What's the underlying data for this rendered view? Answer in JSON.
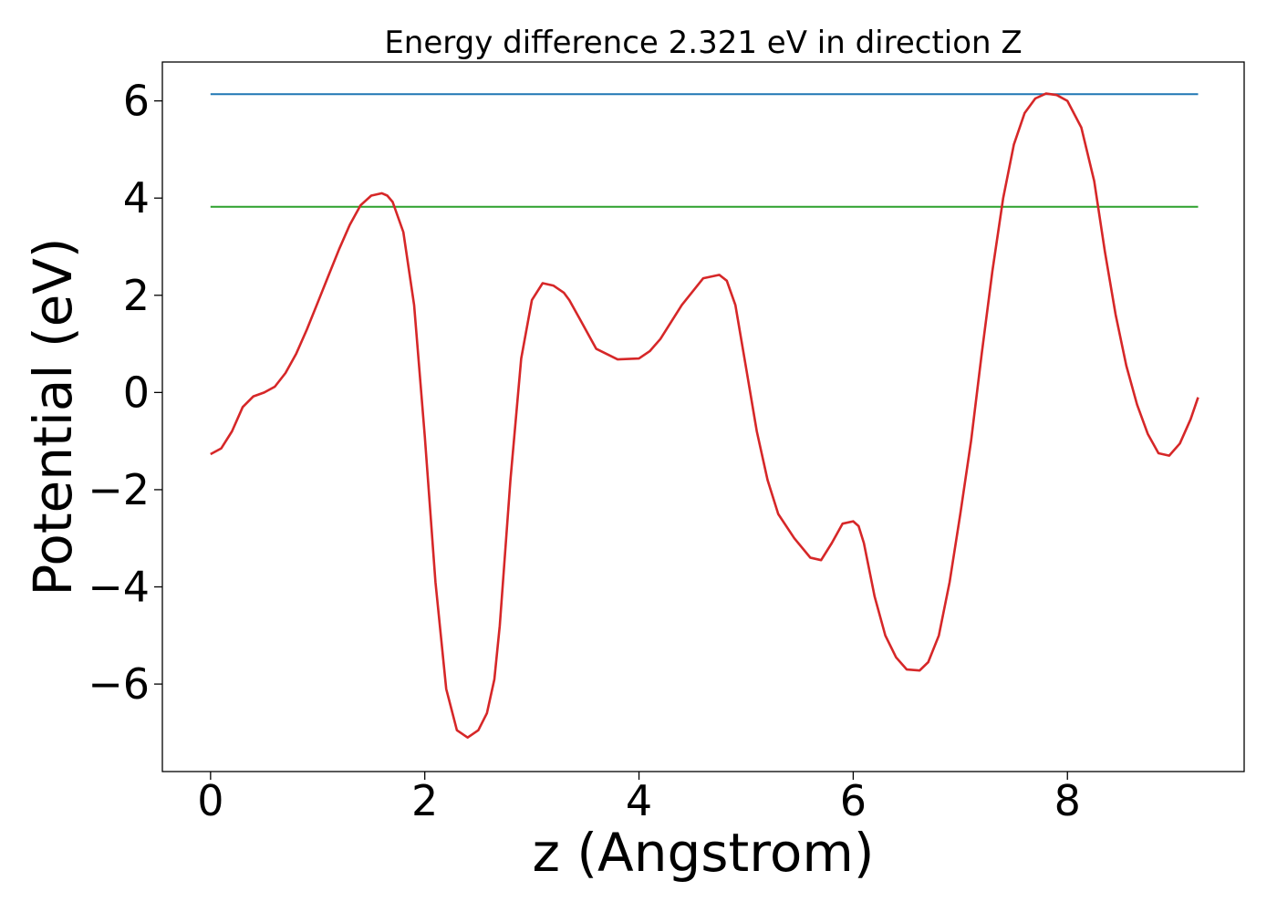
{
  "chart_data": {
    "type": "line",
    "title": "Energy difference 2.321 eV in direction Z",
    "xlabel": "z (Angstrom)",
    "ylabel": "Potential (eV)",
    "xlim": [
      -0.45,
      9.65
    ],
    "ylim": [
      -7.8,
      6.8
    ],
    "xticks": [
      0,
      2,
      4,
      6,
      8
    ],
    "yticks": [
      6,
      4,
      2,
      0,
      -2,
      -4,
      -6
    ],
    "xtick_labels": [
      "0",
      "2",
      "4",
      "6",
      "8"
    ],
    "ytick_labels": [
      "6",
      "4",
      "2",
      "0",
      "−2",
      "−4",
      "−6"
    ],
    "grid": false,
    "legend": "none",
    "series": [
      {
        "color": "#d62728",
        "x": [
          0.0,
          0.1,
          0.2,
          0.3,
          0.4,
          0.5,
          0.6,
          0.7,
          0.8,
          0.9,
          1.0,
          1.1,
          1.2,
          1.3,
          1.4,
          1.5,
          1.6,
          1.65,
          1.7,
          1.8,
          1.9,
          2.0,
          2.1,
          2.2,
          2.3,
          2.4,
          2.5,
          2.58,
          2.65,
          2.7,
          2.8,
          2.9,
          3.0,
          3.1,
          3.2,
          3.3,
          3.35,
          3.45,
          3.6,
          3.8,
          4.0,
          4.1,
          4.2,
          4.4,
          4.6,
          4.75,
          4.82,
          4.9,
          5.0,
          5.1,
          5.2,
          5.3,
          5.45,
          5.6,
          5.7,
          5.8,
          5.9,
          6.0,
          6.05,
          6.1,
          6.2,
          6.3,
          6.4,
          6.5,
          6.62,
          6.7,
          6.8,
          6.9,
          7.0,
          7.1,
          7.2,
          7.3,
          7.4,
          7.5,
          7.6,
          7.7,
          7.8,
          7.9,
          8.0,
          8.13,
          8.25,
          8.35,
          8.45,
          8.55,
          8.65,
          8.75,
          8.85,
          8.95,
          9.05,
          9.15,
          9.22
        ],
        "values": [
          -1.27,
          -1.15,
          -0.8,
          -0.3,
          -0.08,
          0.0,
          0.12,
          0.4,
          0.8,
          1.3,
          1.85,
          2.4,
          2.95,
          3.45,
          3.85,
          4.05,
          4.1,
          4.05,
          3.92,
          3.3,
          1.8,
          -0.9,
          -3.9,
          -6.1,
          -6.95,
          -7.1,
          -6.95,
          -6.6,
          -5.9,
          -4.8,
          -1.8,
          0.7,
          1.9,
          2.25,
          2.2,
          2.05,
          1.9,
          1.5,
          0.9,
          0.68,
          0.7,
          0.85,
          1.1,
          1.8,
          2.35,
          2.42,
          2.3,
          1.8,
          0.5,
          -0.8,
          -1.8,
          -2.5,
          -3.0,
          -3.4,
          -3.45,
          -3.1,
          -2.7,
          -2.65,
          -2.75,
          -3.1,
          -4.2,
          -5.0,
          -5.45,
          -5.7,
          -5.72,
          -5.55,
          -5.0,
          -3.9,
          -2.5,
          -1.0,
          0.8,
          2.5,
          4.0,
          5.1,
          5.75,
          6.05,
          6.15,
          6.12,
          6.0,
          5.45,
          4.35,
          2.9,
          1.6,
          0.55,
          -0.25,
          -0.85,
          -1.25,
          -1.3,
          -1.05,
          -0.55,
          -0.1
        ]
      },
      {
        "color": "#1f77b4",
        "x": [
          0.0,
          9.22
        ],
        "values": [
          6.14,
          6.14
        ]
      },
      {
        "color": "#2ca02c",
        "x": [
          0.0,
          9.22
        ],
        "values": [
          3.82,
          3.82
        ]
      }
    ]
  }
}
